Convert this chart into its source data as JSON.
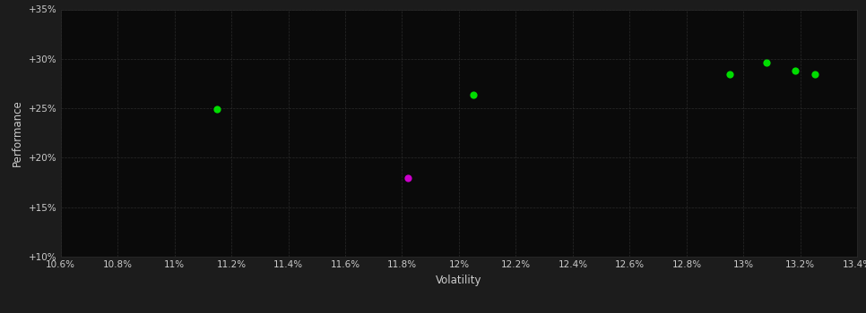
{
  "background_color": "#1c1c1c",
  "plot_bg_color": "#0a0a0a",
  "grid_color": "#2a2a2a",
  "text_color": "#cccccc",
  "xlabel": "Volatility",
  "ylabel": "Performance",
  "xlim": [
    0.106,
    0.134
  ],
  "ylim": [
    0.1,
    0.35
  ],
  "xticks": [
    0.106,
    0.108,
    0.11,
    0.112,
    0.114,
    0.116,
    0.118,
    0.12,
    0.122,
    0.124,
    0.126,
    0.128,
    0.13,
    0.132,
    0.134
  ],
  "yticks": [
    0.1,
    0.15,
    0.2,
    0.25,
    0.3,
    0.35
  ],
  "ytick_labels": [
    "+10%",
    "+15%",
    "+20%",
    "+25%",
    "+30%",
    "+35%"
  ],
  "xtick_labels": [
    "10.6%",
    "10.8%",
    "11%",
    "11.2%",
    "11.4%",
    "11.6%",
    "11.8%",
    "12%",
    "12.2%",
    "12.4%",
    "12.6%",
    "12.8%",
    "13%",
    "13.2%",
    "13.4%"
  ],
  "green_points": [
    [
      0.1115,
      0.249
    ],
    [
      0.1205,
      0.264
    ],
    [
      0.1295,
      0.284
    ],
    [
      0.1308,
      0.296
    ],
    [
      0.1318,
      0.288
    ],
    [
      0.1325,
      0.284
    ]
  ],
  "magenta_points": [
    [
      0.1182,
      0.18
    ]
  ],
  "green_color": "#00dd00",
  "magenta_color": "#cc00cc",
  "point_size": 35,
  "font_size_ticks": 7.5,
  "font_size_labels": 8.5
}
